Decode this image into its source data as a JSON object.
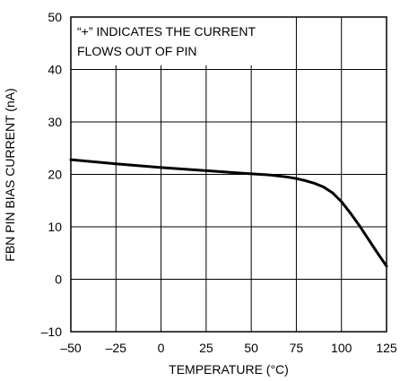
{
  "chart_data": {
    "type": "line",
    "title": "",
    "xlabel": "TEMPERATURE (°C)",
    "ylabel": "FBN PIN BIAS CURRENT (nA)",
    "xlim": [
      -50,
      125
    ],
    "ylim": [
      -10,
      50
    ],
    "xticks": [
      "–50",
      "–25",
      "0",
      "25",
      "50",
      "75",
      "100",
      "125"
    ],
    "yticks": [
      "–10",
      "0",
      "10",
      "20",
      "30",
      "40",
      "50"
    ],
    "grid": true,
    "annotation": [
      "“+” INDICATES THE CURRENT",
      "FLOWS OUT OF PIN"
    ],
    "series": [
      {
        "x": [
          -50,
          -25,
          0,
          25,
          50,
          60,
          70,
          75,
          80,
          85,
          90,
          95,
          100,
          105,
          110,
          115,
          120,
          125
        ],
        "y": [
          22.8,
          22.0,
          21.3,
          20.7,
          20.1,
          19.9,
          19.5,
          19.2,
          18.8,
          18.3,
          17.6,
          16.5,
          14.8,
          12.6,
          10.2,
          7.6,
          5.0,
          2.5
        ]
      }
    ]
  }
}
